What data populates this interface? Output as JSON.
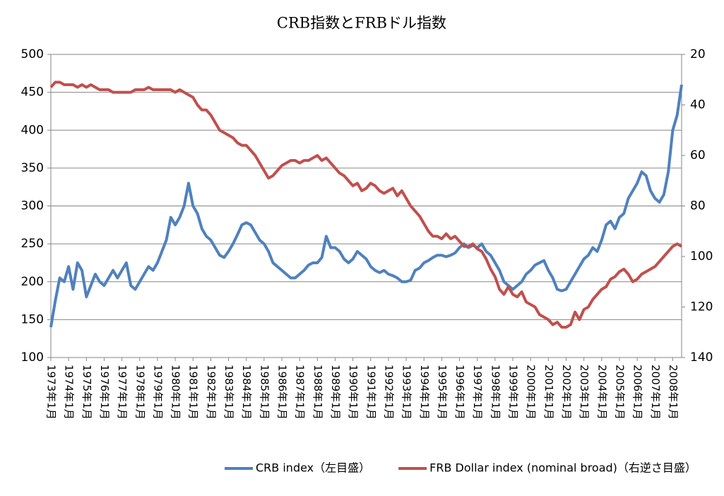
{
  "chart_data": {
    "type": "line",
    "title": "CRB指数とFRBドル指数",
    "categories": [
      "1973年1月",
      null,
      null,
      null,
      "1974年1月",
      null,
      null,
      null,
      "1975年1月",
      null,
      null,
      null,
      "1976年1月",
      null,
      null,
      null,
      "1977年1月",
      null,
      null,
      null,
      "1978年1月",
      null,
      null,
      null,
      "1979年1月",
      null,
      null,
      null,
      "1980年1月",
      null,
      null,
      null,
      "1981年1月",
      null,
      null,
      null,
      "1982年1月",
      null,
      null,
      null,
      "1983年1月",
      null,
      null,
      null,
      "1984年1月",
      null,
      null,
      null,
      "1985年1月",
      null,
      null,
      null,
      "1986年1月",
      null,
      null,
      null,
      "1987年1月",
      null,
      null,
      null,
      "1988年1月",
      null,
      null,
      null,
      "1989年1月",
      null,
      null,
      null,
      "1990年1月",
      null,
      null,
      null,
      "1991年1月",
      null,
      null,
      null,
      "1992年1月",
      null,
      null,
      null,
      "1993年1月",
      null,
      null,
      null,
      "1994年1月",
      null,
      null,
      null,
      "1995年1月",
      null,
      null,
      null,
      "1996年1月",
      null,
      null,
      null,
      "1997年1月",
      null,
      null,
      null,
      "1998年1月",
      null,
      null,
      null,
      "1999年1月",
      null,
      null,
      null,
      "2000年1月",
      null,
      null,
      null,
      "2001年1月",
      null,
      null,
      null,
      "2002年1月",
      null,
      null,
      null,
      "2003年1月",
      null,
      null,
      null,
      "2004年1月",
      null,
      null,
      null,
      "2005年1月",
      null,
      null,
      null,
      "2006年1月",
      null,
      null,
      null,
      "2007年1月",
      null,
      null,
      null,
      "2008年1月",
      null,
      null
    ],
    "series": [
      {
        "name": "CRB index（左目盛）",
        "color": "#4f81bd",
        "values": [
          140,
          175,
          205,
          200,
          220,
          190,
          225,
          215,
          180,
          195,
          210,
          200,
          195,
          205,
          215,
          205,
          215,
          225,
          195,
          190,
          200,
          210,
          220,
          215,
          225,
          240,
          255,
          285,
          275,
          285,
          300,
          330,
          300,
          290,
          270,
          260,
          255,
          245,
          235,
          232,
          240,
          250,
          262,
          275,
          278,
          275,
          265,
          255,
          250,
          240,
          225,
          220,
          215,
          210,
          205,
          205,
          210,
          215,
          222,
          225,
          225,
          232,
          260,
          245,
          245,
          240,
          230,
          225,
          230,
          240,
          235,
          230,
          220,
          215,
          212,
          215,
          210,
          208,
          205,
          200,
          200,
          202,
          215,
          218,
          225,
          228,
          232,
          235,
          235,
          233,
          235,
          238,
          245,
          250,
          245,
          248,
          245,
          250,
          240,
          235,
          225,
          215,
          200,
          195,
          190,
          195,
          200,
          210,
          215,
          222,
          225,
          228,
          215,
          205,
          190,
          188,
          190,
          200,
          210,
          220,
          230,
          235,
          245,
          240,
          255,
          275,
          280,
          270,
          285,
          290,
          310,
          320,
          330,
          345,
          340,
          320,
          310,
          305,
          315,
          345,
          400,
          420,
          460
        ]
      },
      {
        "name": "FRB Dollar index (nominal broad)（右逆さ目盛）",
        "color": "#c0504d",
        "axis": "y2",
        "values": [
          33,
          31,
          31,
          32,
          32,
          32,
          33,
          32,
          33,
          32,
          33,
          34,
          34,
          34,
          35,
          35,
          35,
          35,
          35,
          34,
          34,
          34,
          33,
          34,
          34,
          34,
          34,
          34,
          35,
          34,
          35,
          36,
          37,
          40,
          42,
          42,
          44,
          47,
          50,
          51,
          52,
          53,
          55,
          56,
          56,
          58,
          60,
          63,
          66,
          69,
          68,
          66,
          64,
          63,
          62,
          62,
          63,
          62,
          62,
          61,
          60,
          62,
          61,
          63,
          65,
          67,
          68,
          70,
          72,
          71,
          74,
          73,
          71,
          72,
          74,
          75,
          74,
          73,
          76,
          74,
          77,
          80,
          82,
          84,
          87,
          90,
          92,
          92,
          93,
          91,
          93,
          92,
          94,
          96,
          96,
          95,
          97,
          98,
          101,
          105,
          108,
          113,
          115,
          112,
          115,
          116,
          114,
          118,
          119,
          120,
          123,
          124,
          125,
          127,
          126,
          128,
          128,
          127,
          122,
          125,
          121,
          120,
          117,
          115,
          113,
          112,
          109,
          108,
          106,
          105,
          107,
          110,
          109,
          107,
          106,
          105,
          104,
          102,
          100,
          98,
          96,
          95,
          96
        ]
      }
    ],
    "ylim": [
      100,
      500
    ],
    "yticks": [
      100,
      150,
      200,
      250,
      300,
      350,
      400,
      450,
      500
    ],
    "y2lim": [
      140,
      20
    ],
    "y2ticks": [
      20,
      40,
      60,
      80,
      100,
      120,
      140
    ],
    "y2_inverted": true,
    "grid": true,
    "legend": "bottom"
  }
}
